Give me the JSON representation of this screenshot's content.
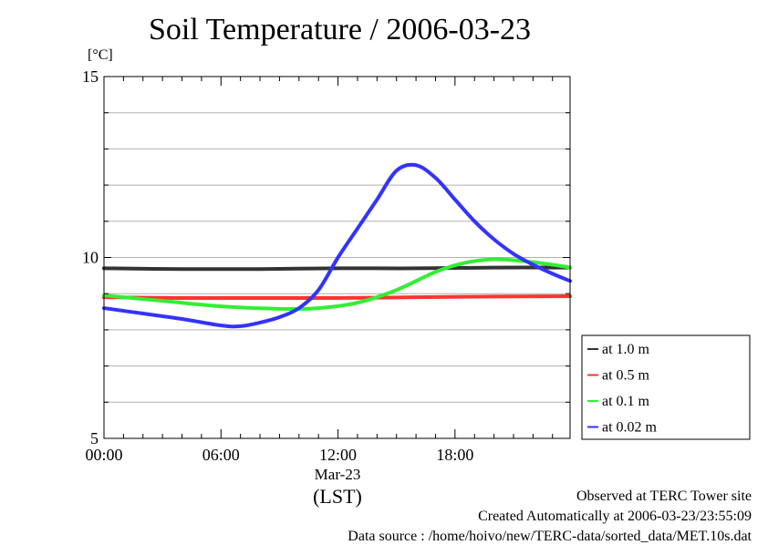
{
  "title": "Soil Temperature / 2006-03-23",
  "footer": {
    "site": "Observed at TERC Tower site",
    "created": "Created Automatically at 2006-03-23/23:55:09",
    "source": "Data source : /home/hoivo/new/TERC-data/sorted_data/MET.10s.dat"
  },
  "chart_data": {
    "type": "line",
    "title": "Soil Temperature / 2006-03-23",
    "ylabel": "[°C]",
    "xlabel": "(LST)",
    "date_label": "Mar-23",
    "ylim": [
      5,
      15
    ],
    "xlim": [
      0,
      23.9
    ],
    "xticks": [
      {
        "value": 0,
        "label": "00:00"
      },
      {
        "value": 6,
        "label": "06:00"
      },
      {
        "value": 12,
        "label": "12:00"
      },
      {
        "value": 18,
        "label": "18:00"
      }
    ],
    "yticks": [
      {
        "value": 5,
        "label": "5"
      },
      {
        "value": 10,
        "label": "10"
      },
      {
        "value": 15,
        "label": "15"
      }
    ],
    "grid": true,
    "legend_position": "right",
    "x_unit": "hour",
    "series": [
      {
        "name": "at 1.0 m",
        "color": "#333333",
        "x": [
          0,
          4,
          8,
          12,
          16,
          20,
          23.9
        ],
        "y": [
          9.7,
          9.68,
          9.68,
          9.7,
          9.7,
          9.72,
          9.72
        ]
      },
      {
        "name": "at 0.5 m",
        "color": "#ff3333",
        "x": [
          0,
          4,
          8,
          12,
          16,
          20,
          23.9
        ],
        "y": [
          8.9,
          8.88,
          8.88,
          8.88,
          8.9,
          8.92,
          8.93
        ]
      },
      {
        "name": "at 0.1 m",
        "color": "#33ee33",
        "x": [
          0,
          3,
          6,
          9,
          11,
          13,
          15,
          17,
          18.5,
          20,
          21.5,
          23,
          23.9
        ],
        "y": [
          8.95,
          8.8,
          8.65,
          8.58,
          8.6,
          8.75,
          9.1,
          9.6,
          9.85,
          9.95,
          9.9,
          9.8,
          9.72
        ]
      },
      {
        "name": "at 0.02 m",
        "color": "#3333ff",
        "x": [
          0,
          2,
          4,
          6,
          7,
          8,
          9,
          10,
          11,
          12,
          13,
          14,
          15,
          16,
          17,
          18,
          19,
          20,
          21,
          22,
          23,
          23.9
        ],
        "y": [
          8.6,
          8.45,
          8.3,
          8.12,
          8.1,
          8.2,
          8.35,
          8.6,
          9.1,
          10.0,
          10.8,
          11.6,
          12.4,
          12.55,
          12.2,
          11.6,
          11.0,
          10.5,
          10.1,
          9.8,
          9.55,
          9.35
        ]
      }
    ]
  }
}
